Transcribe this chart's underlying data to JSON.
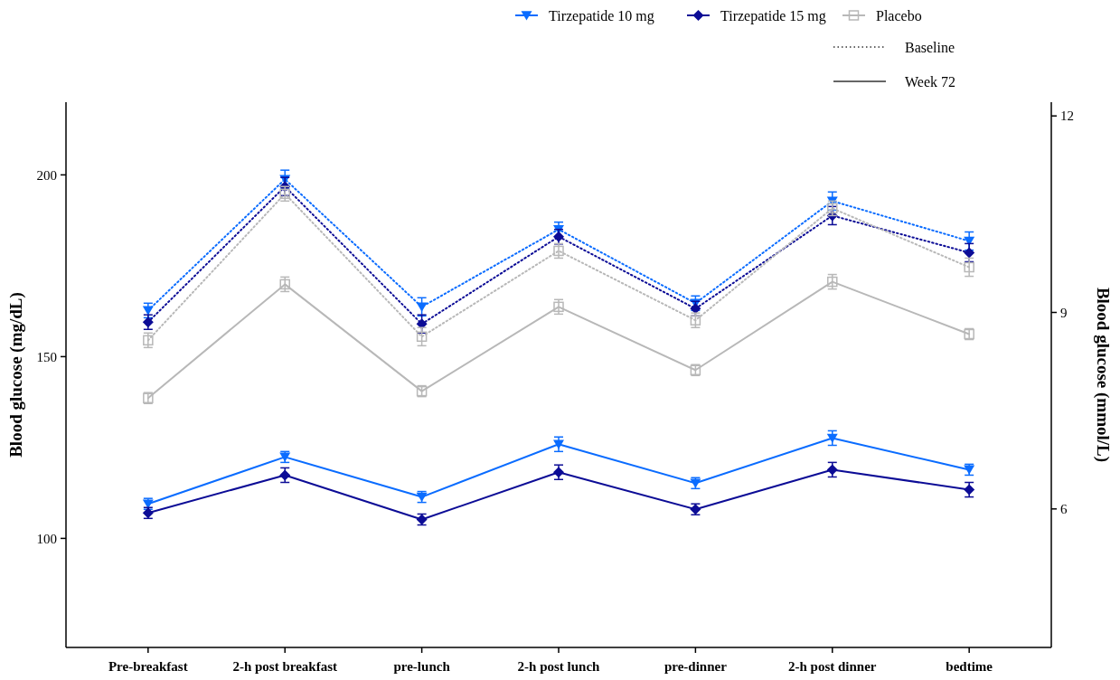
{
  "chart_data": {
    "type": "line",
    "categories": [
      "Pre-breakfast",
      "2-h post breakfast",
      "pre-lunch",
      "2-h post lunch",
      "pre-dinner",
      "2-h post dinner",
      "bedtime"
    ],
    "ylabel": "Blood glucose (mg/dL)",
    "y2label": "Blood glucose (mmol/L)",
    "ylim": [
      70,
      220
    ],
    "yticks": [
      100,
      150,
      200
    ],
    "y2lim": [
      3.885,
      12.21
    ],
    "y2ticks": [
      6,
      9,
      12
    ],
    "legend": "top right",
    "grid": false,
    "annotations": [
      "Baseline",
      "Week 72"
    ],
    "series": [
      {
        "color": "#0a6cff",
        "marker": "triangle",
        "line_style": "dotted",
        "values": [
          162.7,
          198.8,
          163.7,
          185,
          164.7,
          192.8,
          181.8
        ],
        "errors": [
          2,
          2.5,
          2.5,
          2,
          2,
          2.5,
          2.5
        ]
      },
      {
        "color": "#0c0c96",
        "marker": "diamond",
        "line_style": "dotted",
        "values": [
          159.5,
          196.8,
          159,
          183,
          163.2,
          188.8,
          178.6
        ],
        "errors": [
          2,
          2.5,
          2.5,
          2,
          2,
          2.5,
          2.5
        ]
      },
      {
        "color": "#b8b8b8",
        "marker": "square",
        "line_style": "dotted",
        "values": [
          154.5,
          194.8,
          155.5,
          179.1,
          160,
          190.8,
          174.6
        ],
        "errors": [
          2,
          2,
          2.5,
          2,
          2,
          2,
          2.5
        ]
      },
      {
        "name": "Tirzepatide 10 mg",
        "color": "#0a6cff",
        "marker": "triangle",
        "line_style": "solid",
        "values": [
          109.5,
          122.4,
          111.4,
          125.9,
          115.2,
          127.6,
          118.9
        ],
        "errors": [
          1.5,
          1.5,
          1.5,
          2,
          1.5,
          2,
          1.5
        ]
      },
      {
        "name": "Tirzepatide 15 mg",
        "color": "#0c0c96",
        "marker": "diamond",
        "line_style": "solid",
        "values": [
          107,
          117.4,
          105.2,
          118.2,
          108,
          118.9,
          113.4
        ],
        "errors": [
          1.5,
          2,
          1.5,
          2,
          1.5,
          2,
          2
        ]
      },
      {
        "name": "Placebo",
        "color": "#b8b8b8",
        "marker": "square",
        "line_style": "solid",
        "values": [
          138.6,
          169.9,
          140.5,
          163.7,
          146.3,
          170.6,
          156.2
        ],
        "errors": [
          1.5,
          2,
          1.5,
          2,
          1.5,
          2,
          1.5
        ]
      }
    ]
  }
}
